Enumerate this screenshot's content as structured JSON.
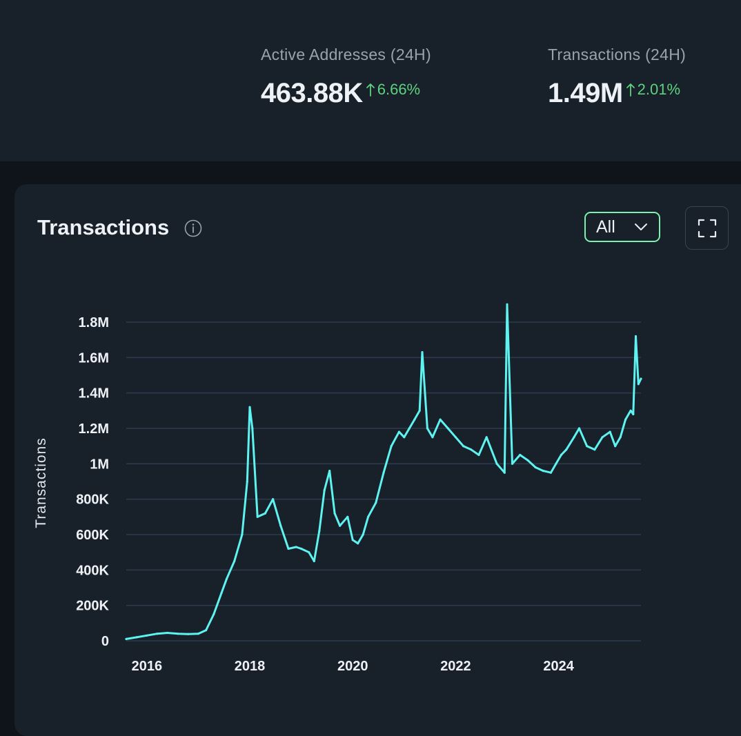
{
  "stats": [
    {
      "label": "Active Addresses (24H)",
      "value": "463.88K",
      "change": "6.66%"
    },
    {
      "label": "Transactions (24H)",
      "value": "1.49M",
      "change": "2.01%"
    }
  ],
  "card": {
    "title": "Transactions",
    "range_label": "All"
  },
  "icons": {
    "info": "info-circle-icon",
    "dropdown": "chevron-down-icon",
    "fullscreen": "expand-icon",
    "change": "arrow-up-icon"
  },
  "colors": {
    "accent": "#7ef0b0",
    "positive": "#5dd27f",
    "line": "#5ef3f0",
    "background": "#18202a"
  },
  "chart_data": {
    "type": "line",
    "title": "Transactions",
    "xlabel": "",
    "ylabel": "Transactions",
    "xlim": [
      2015.6,
      2025.6
    ],
    "ylim": [
      0,
      1800000
    ],
    "grid": true,
    "legend": "none",
    "x_ticks": [
      2016,
      2018,
      2020,
      2022,
      2024
    ],
    "x_tick_labels": [
      "2016",
      "2018",
      "2020",
      "2022",
      "2024"
    ],
    "y_ticks": [
      0,
      200000,
      400000,
      600000,
      800000,
      1000000,
      1200000,
      1400000,
      1600000,
      1800000
    ],
    "y_tick_labels": [
      "0",
      "200K",
      "400K",
      "600K",
      "800K",
      "1M",
      "1.2M",
      "1.4M",
      "1.6M",
      "1.8M"
    ],
    "series": [
      {
        "color": "#5ef3f0",
        "x": [
          2015.6,
          2015.8,
          2016.0,
          2016.2,
          2016.4,
          2016.6,
          2016.8,
          2017.0,
          2017.15,
          2017.3,
          2017.45,
          2017.55,
          2017.7,
          2017.85,
          2017.95,
          2018.0,
          2018.05,
          2018.15,
          2018.3,
          2018.45,
          2018.6,
          2018.75,
          2018.9,
          2019.0,
          2019.15,
          2019.25,
          2019.35,
          2019.45,
          2019.55,
          2019.65,
          2019.75,
          2019.9,
          2020.0,
          2020.1,
          2020.2,
          2020.3,
          2020.45,
          2020.6,
          2020.75,
          2020.9,
          2021.0,
          2021.1,
          2021.2,
          2021.3,
          2021.35,
          2021.45,
          2021.55,
          2021.7,
          2021.85,
          2022.0,
          2022.15,
          2022.3,
          2022.45,
          2022.6,
          2022.8,
          2022.95,
          2023.0,
          2023.1,
          2023.25,
          2023.4,
          2023.55,
          2023.7,
          2023.85,
          2023.95,
          2024.05,
          2024.15,
          2024.3,
          2024.4,
          2024.55,
          2024.7,
          2024.85,
          2025.0,
          2025.1,
          2025.2,
          2025.3,
          2025.4,
          2025.45,
          2025.5,
          2025.55,
          2025.6
        ],
        "values": [
          10000,
          20000,
          30000,
          40000,
          45000,
          40000,
          38000,
          40000,
          60000,
          150000,
          270000,
          350000,
          450000,
          600000,
          900000,
          1320000,
          1200000,
          700000,
          720000,
          800000,
          650000,
          520000,
          530000,
          520000,
          500000,
          450000,
          620000,
          850000,
          960000,
          720000,
          650000,
          700000,
          570000,
          550000,
          600000,
          700000,
          780000,
          950000,
          1100000,
          1180000,
          1150000,
          1200000,
          1250000,
          1300000,
          1630000,
          1200000,
          1150000,
          1250000,
          1200000,
          1150000,
          1100000,
          1080000,
          1050000,
          1150000,
          1000000,
          950000,
          1900000,
          1000000,
          1050000,
          1020000,
          980000,
          960000,
          950000,
          1000000,
          1050000,
          1080000,
          1150000,
          1200000,
          1100000,
          1080000,
          1150000,
          1180000,
          1100000,
          1150000,
          1250000,
          1300000,
          1280000,
          1720000,
          1450000,
          1480000
        ]
      }
    ]
  }
}
